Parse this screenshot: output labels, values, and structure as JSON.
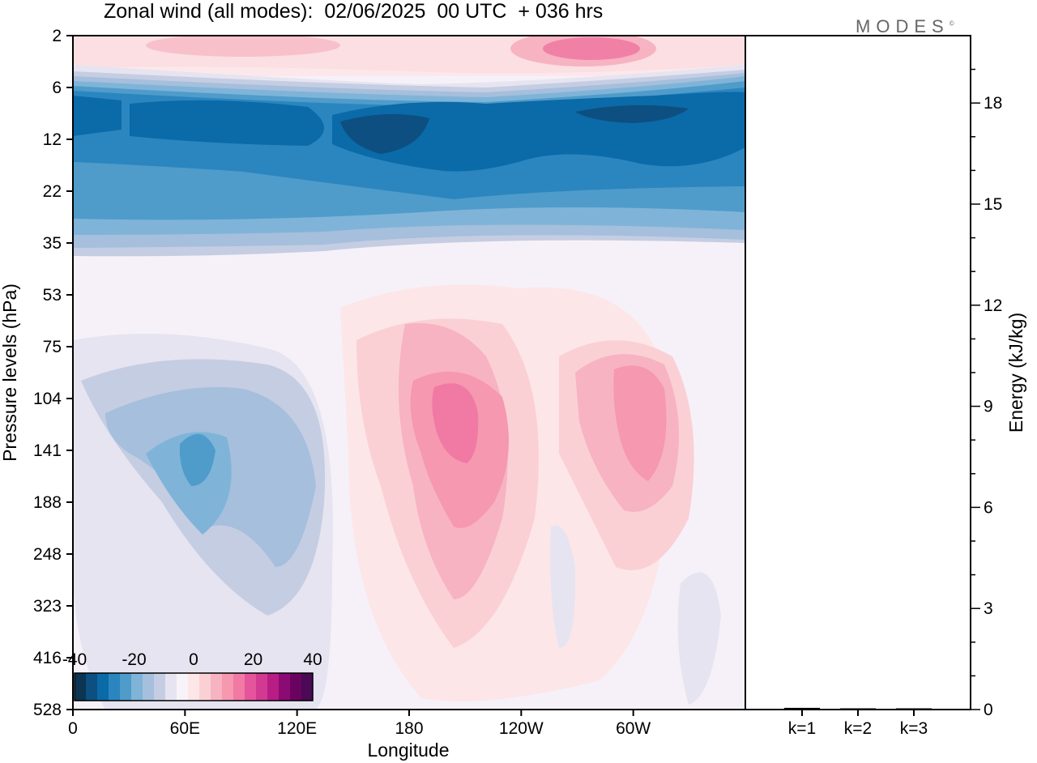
{
  "header": {
    "title": "Zonal wind (all modes):  02/06/2025  00 UTC  + 036 hrs",
    "logo": "MODES",
    "logo_mark": "©"
  },
  "chart_data": [
    {
      "type": "heatmap",
      "title": "Zonal wind (all modes):  02/06/2025  00 UTC  + 036 hrs",
      "xlabel": "Longitude",
      "ylabel": "Pressure levels (hPa)",
      "x_ticks": [
        "0",
        "60E",
        "120E",
        "180",
        "120W",
        "60W"
      ],
      "y_ticks": [
        "2",
        "6",
        "12",
        "22",
        "35",
        "53",
        "75",
        "104",
        "141",
        "188",
        "248",
        "323",
        "416",
        "528"
      ],
      "y_scale": "pressure levels, top = 2 hPa, bottom = 528 hPa",
      "colorbar": {
        "tick_labels": [
          "-40",
          "-20",
          "0",
          "20",
          "40"
        ],
        "range": [
          -40,
          40
        ],
        "colors": [
          "#0b3552",
          "#0d4f80",
          "#0b6aa8",
          "#2b86bf",
          "#4f9ccb",
          "#7fb4d8",
          "#a5bfdc",
          "#c5cde3",
          "#e6e4f0",
          "#f7f3f8",
          "#fde6e7",
          "#fad0d5",
          "#f7b3c1",
          "#f598b0",
          "#f07aa4",
          "#e5559b",
          "#d23a92",
          "#b81d86",
          "#8c0a74",
          "#6a035f",
          "#4a0a56"
        ]
      },
      "features": [
        {
          "name": "upper easterly band",
          "pressure_range_hPa": [
            6,
            35
          ],
          "value_min": -35
        },
        {
          "name": "westerly core near 180",
          "lon": 185,
          "pressure_hPa": 141,
          "value": 30
        },
        {
          "name": "westerly core near 60W",
          "lon": 295,
          "pressure_hPa": 130,
          "value": 20
        },
        {
          "name": "easterly core near 60E",
          "lon": 62,
          "pressure_hPa": 141,
          "value": -25
        },
        {
          "name": "stratopause westerlies",
          "lon": 270,
          "pressure_hPa": 3,
          "value": 20
        }
      ]
    },
    {
      "type": "bar",
      "ylabel": "Energy (kJ/kg)",
      "categories": [
        "k=1",
        "k=2",
        "k=3"
      ],
      "values": [
        0.05,
        0.02,
        0.02
      ],
      "ylim": [
        0,
        20
      ],
      "y_ticks": [
        "0",
        "3",
        "6",
        "9",
        "12",
        "15",
        "18"
      ]
    }
  ]
}
